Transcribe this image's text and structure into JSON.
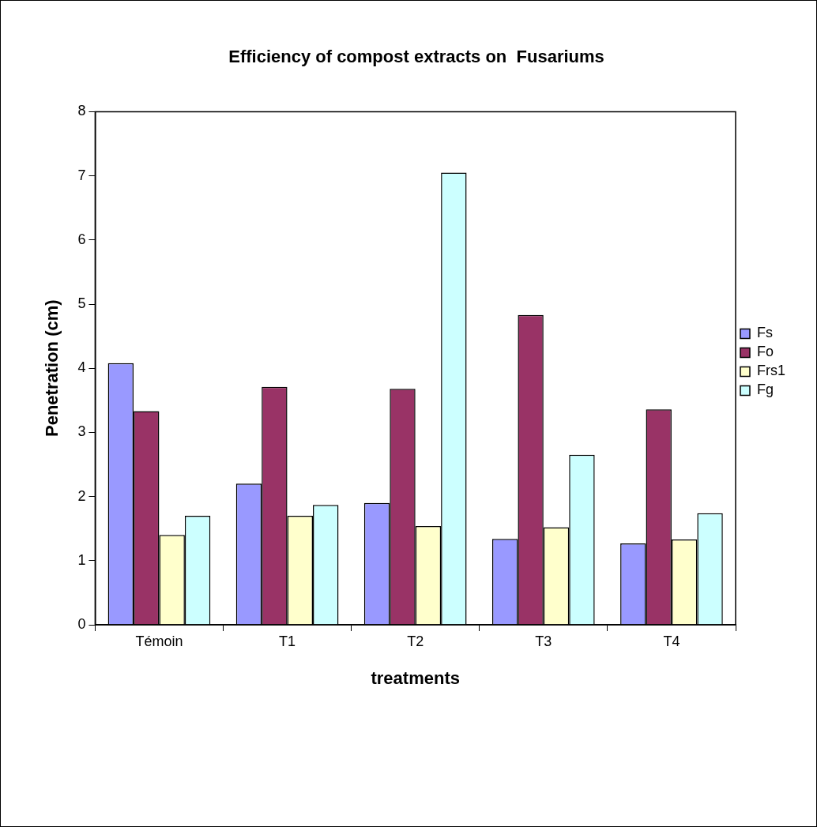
{
  "chart_data": {
    "type": "bar",
    "title": "Efficiency of compost extracts on  Fusariums",
    "xlabel": "treatments",
    "ylabel": "Penetration (cm)",
    "categories": [
      "Témoin",
      "T1",
      "T2",
      "T3",
      "T4"
    ],
    "series": [
      {
        "name": "Fs",
        "color": "#9999ff",
        "values": [
          4.08,
          2.2,
          1.9,
          1.34,
          1.27
        ]
      },
      {
        "name": "Fo",
        "color": "#993366",
        "values": [
          3.33,
          3.71,
          3.68,
          4.83,
          3.36
        ]
      },
      {
        "name": "Frs1",
        "color": "#ffffcc",
        "values": [
          1.4,
          1.7,
          1.54,
          1.52,
          1.33
        ]
      },
      {
        "name": "Fg",
        "color": "#ccffff",
        "values": [
          1.7,
          1.87,
          7.05,
          2.65,
          1.74
        ]
      }
    ],
    "ylim": [
      0,
      8
    ],
    "yticks": [
      0,
      1,
      2,
      3,
      4,
      5,
      6,
      7,
      8
    ],
    "grid": false,
    "legend": "right"
  }
}
